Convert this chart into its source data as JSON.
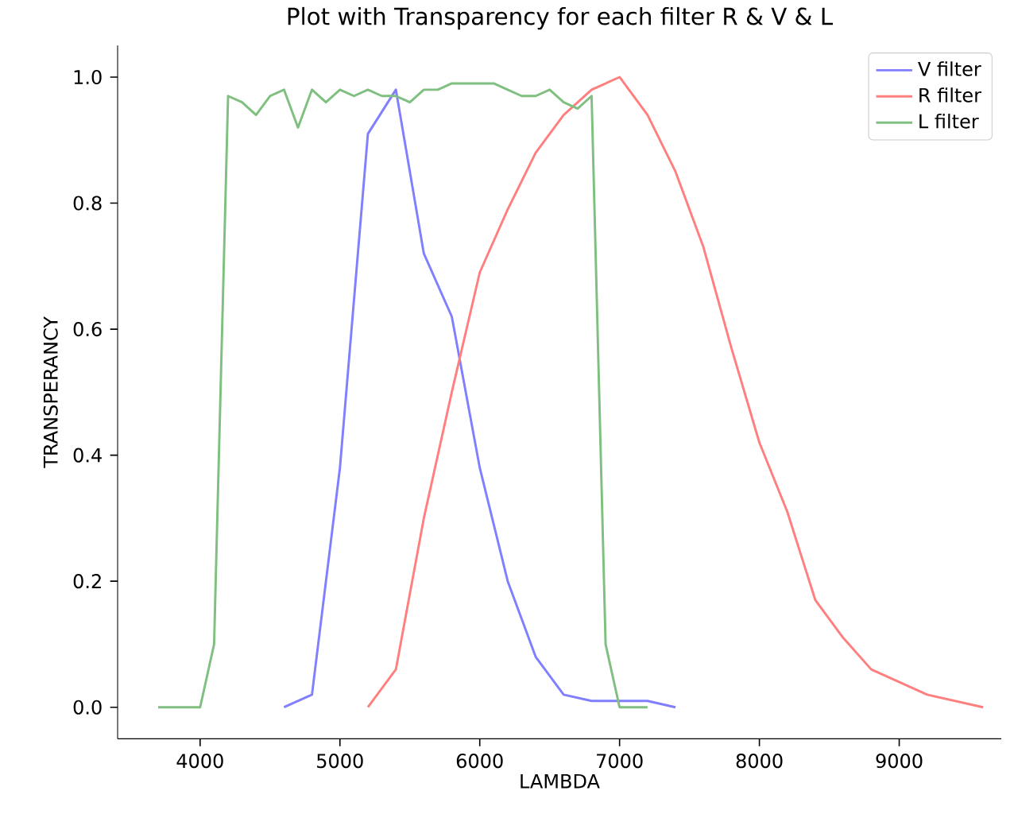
{
  "chart_data": {
    "type": "line",
    "title": "Plot with Transparency for each filter R & V & L",
    "xlabel": "LAMBDA",
    "ylabel": "TRANSPERANCY",
    "xlim": [
      3410,
      9730
    ],
    "ylim": [
      -0.05,
      1.05
    ],
    "xticks": [
      4000,
      5000,
      6000,
      7000,
      8000,
      9000
    ],
    "yticks": [
      {
        "value": 0,
        "label": "0.0"
      },
      {
        "value": 0.2,
        "label": "0.2"
      },
      {
        "value": 0.4,
        "label": "0.4"
      },
      {
        "value": 0.6,
        "label": "0.6"
      },
      {
        "value": 0.8,
        "label": "0.8"
      },
      {
        "value": 1,
        "label": "1.0"
      }
    ],
    "legend": "top right",
    "grid": false,
    "series": [
      {
        "name": "V filter",
        "color": "#7f7fff",
        "x": [
          4600,
          4800,
          5000,
          5200,
          5400,
          5600,
          5800,
          6000,
          6200,
          6400,
          6600,
          6800,
          7000,
          7200,
          7400
        ],
        "values": [
          0,
          0.02,
          0.38,
          0.91,
          0.98,
          0.72,
          0.62,
          0.38,
          0.2,
          0.08,
          0.02,
          0.01,
          0.01,
          0.01,
          0
        ]
      },
      {
        "name": "R filter",
        "color": "#ff7f7f",
        "x": [
          5200,
          5400,
          5600,
          5800,
          6000,
          6200,
          6400,
          6600,
          6800,
          7000,
          7200,
          7400,
          7600,
          7800,
          8000,
          8200,
          8400,
          8600,
          8800,
          9200,
          9600
        ],
        "values": [
          0,
          0.06,
          0.3,
          0.5,
          0.69,
          0.79,
          0.88,
          0.94,
          0.98,
          1.0,
          0.94,
          0.85,
          0.73,
          0.57,
          0.42,
          0.31,
          0.17,
          0.11,
          0.06,
          0.02,
          0
        ]
      },
      {
        "name": "L filter",
        "color": "#7fbf7f",
        "x": [
          3700,
          4000,
          4100,
          4200,
          4300,
          4400,
          4500,
          4600,
          4700,
          4800,
          4900,
          5000,
          5100,
          5200,
          5300,
          5400,
          5500,
          5600,
          5700,
          5800,
          5900,
          6000,
          6100,
          6200,
          6300,
          6400,
          6500,
          6600,
          6700,
          6800,
          6900,
          7000,
          7200
        ],
        "values": [
          0,
          0,
          0.1,
          0.97,
          0.96,
          0.94,
          0.97,
          0.98,
          0.92,
          0.98,
          0.96,
          0.98,
          0.97,
          0.98,
          0.97,
          0.97,
          0.96,
          0.98,
          0.98,
          0.99,
          0.99,
          0.99,
          0.99,
          0.98,
          0.97,
          0.97,
          0.98,
          0.96,
          0.95,
          0.97,
          0.1,
          0,
          0
        ]
      }
    ]
  }
}
